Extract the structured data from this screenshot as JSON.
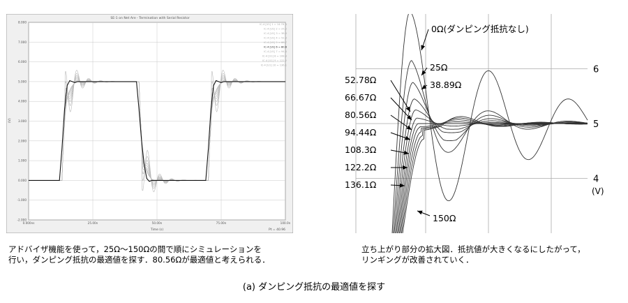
{
  "chart_data": [
    {
      "type": "line",
      "title": "SE-1 on Net Are - Termination with Serial Resistor",
      "ylabel": "(V)",
      "xlabel": "Time (s)",
      "ylim": [
        -2.0,
        8.0
      ],
      "y_ticks": [
        "8.000",
        "7.000",
        "6.000",
        "5.000",
        "4.000",
        "3.000",
        "2.000",
        "1.000",
        "0.000",
        "-1.000",
        "-2.000"
      ],
      "x_ticks": [
        "0.000ns",
        "25.00n",
        "50.00n",
        "75.00n",
        "100.0n"
      ],
      "x_tick_values": [
        0,
        25,
        50,
        75,
        100
      ],
      "xlim": [
        0,
        100
      ],
      "footer_note": "Pt = 40.96",
      "legend": [
        "IC-4 [U1] 1 = 14.78 Ω",
        "IC-4 [U1] 2 = 25.0",
        "IC-4 [U1] 3 = 38.9",
        "IC-4 [U1] 4 = 52.8",
        "IC-4 [U1] 5 = 66.7",
        "IC-4 [U1] 6 = 80.6",
        "IC-4 [U1] 7 = 94.4",
        "IC-4 [U1] 8 = 108.3",
        "IC-4 [U1] 9 = 122.2",
        "IC-4 [U1] 10 = 136.1"
      ],
      "highlight_legend_index": 5,
      "series": [
        {
          "values_note": "",
          "x": [
            0,
            8,
            10,
            12,
            13,
            14,
            15,
            16,
            17,
            18,
            19,
            20,
            21,
            22,
            38,
            40,
            42,
            43,
            44,
            45,
            46,
            47,
            48,
            49,
            50,
            51,
            52,
            53,
            54,
            55,
            56,
            58,
            65,
            67,
            69,
            70,
            71,
            72,
            73,
            74,
            75,
            76,
            77,
            78,
            79,
            80,
            81,
            82,
            84,
            100
          ],
          "y": [
            0,
            0,
            0,
            0,
            1.6,
            3.6,
            4.8,
            5.05,
            5.0,
            4.95,
            5.0,
            5.0,
            5.0,
            5.0,
            5.0,
            5.0,
            5.0,
            3.6,
            2.0,
            0.8,
            0.1,
            -0.05,
            0,
            0,
            0,
            0,
            0,
            0,
            0,
            0,
            0,
            0,
            0,
            0,
            0,
            1.6,
            3.6,
            4.8,
            5.05,
            5.0,
            4.95,
            5.0,
            5.0,
            5.0,
            5.0,
            5.0,
            5.0,
            5.0,
            5.0,
            5.0
          ]
        }
      ]
    },
    {
      "type": "line",
      "title": "",
      "y_ticks": [
        "6",
        "5",
        "4"
      ],
      "y_tick_values": [
        6,
        5,
        4
      ],
      "ylim": [
        3.0,
        7.0
      ],
      "ylabel": "(V)",
      "annotations": [
        "0Ω(ダンピング抵抗なし)",
        "25Ω",
        "38.89Ω",
        "52.78Ω",
        "66.67Ω",
        "80.56Ω",
        "94.44Ω",
        "108.3Ω",
        "122.2Ω",
        "136.1Ω",
        "150Ω"
      ],
      "series": [
        {
          "name": "0Ω(ダンピング抵抗なし)",
          "peak": 7.05,
          "dip": 3.9
        },
        {
          "name": "25Ω",
          "peak": 6.15,
          "dip": 4.4
        },
        {
          "name": "38.89Ω",
          "peak": 5.75,
          "dip": 4.7
        },
        {
          "name": "52.78Ω",
          "peak": 5.45,
          "dip": 4.85
        },
        {
          "name": "66.67Ω",
          "peak": 5.25,
          "dip": 4.9
        },
        {
          "name": "80.56Ω",
          "peak": 5.1,
          "dip": 4.95
        },
        {
          "name": "94.44Ω",
          "peak": 5.0,
          "dip": 4.95
        },
        {
          "name": "108.3Ω",
          "peak": 4.93,
          "dip": 4.95
        },
        {
          "name": "122.2Ω",
          "peak": 4.85,
          "dip": 4.95
        },
        {
          "name": "136.1Ω",
          "peak": 4.78,
          "dip": 4.95
        },
        {
          "name": "150Ω",
          "peak": 4.72,
          "dip": 4.95
        }
      ]
    }
  ],
  "captions": {
    "left": "アドバイザ機能を使って，25Ω～150Ωの間で順にシミュレーションを\n行い，ダンピング抵抗の最適値を探す．80.56Ωが最適値と考えられる．",
    "right": "立ち上がり部分の拡大図．抵抗値が大きくなるにしたがって，\nリンギングが改善されていく．",
    "figure": "(a) ダンピング抵抗の最適値を探す"
  },
  "colors": {
    "bold_trace": "#111111",
    "light_trace": "#b8b8b8",
    "grid": "#c8c8c8",
    "right_trace": "#333333"
  }
}
